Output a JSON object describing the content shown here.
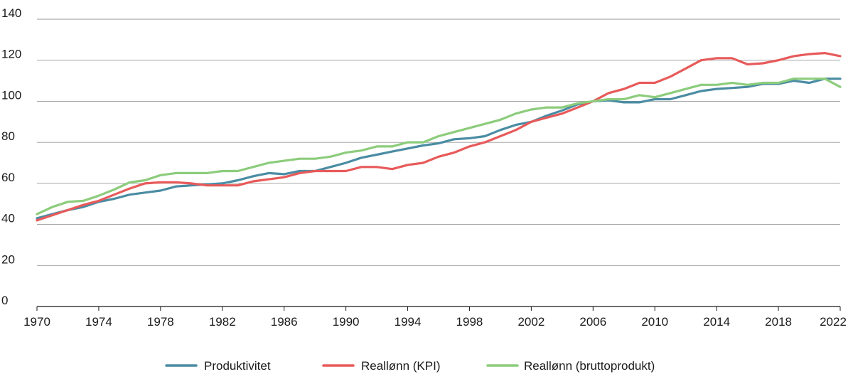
{
  "chart_data": {
    "type": "line",
    "title": "",
    "xlabel": "",
    "ylabel": "",
    "xlim": [
      1970,
      2022
    ],
    "ylim": [
      0,
      140
    ],
    "grid": true,
    "legend_position": "bottom",
    "x_ticks": [
      "1970",
      "1974",
      "1978",
      "1982",
      "1986",
      "1990",
      "1994",
      "1998",
      "2002",
      "2006",
      "2010",
      "2014",
      "2018",
      "2022"
    ],
    "y_ticks": [
      "0",
      "20",
      "40",
      "60",
      "80",
      "100",
      "120",
      "140"
    ],
    "x": [
      1970,
      1971,
      1972,
      1973,
      1974,
      1975,
      1976,
      1977,
      1978,
      1979,
      1980,
      1981,
      1982,
      1983,
      1984,
      1985,
      1986,
      1987,
      1988,
      1989,
      1990,
      1991,
      1992,
      1993,
      1994,
      1995,
      1996,
      1997,
      1998,
      1999,
      2000,
      2001,
      2002,
      2003,
      2004,
      2005,
      2006,
      2007,
      2008,
      2009,
      2010,
      2011,
      2012,
      2013,
      2014,
      2015,
      2016,
      2017,
      2018,
      2019,
      2020,
      2021,
      2022
    ],
    "series": [
      {
        "name": "Produktivitet",
        "color": "#4a8ca3",
        "values": [
          43,
          45,
          47,
          48.5,
          51,
          52.5,
          54.5,
          55.5,
          56.5,
          58.5,
          59,
          59.5,
          60,
          61.5,
          63.5,
          65,
          64.5,
          66,
          66,
          68,
          70,
          72.5,
          74,
          75.5,
          77,
          78.5,
          79.5,
          81.5,
          82,
          83,
          86,
          88.5,
          90,
          93,
          95.5,
          98.5,
          100,
          100.5,
          99.5,
          99.5,
          101,
          101,
          103,
          105,
          106,
          106.5,
          107,
          108.5,
          108.5,
          110,
          109,
          111,
          111
        ]
      },
      {
        "name": "Reallønn (KPI)",
        "color": "#e85a5a",
        "values": [
          42,
          44.5,
          47,
          49.5,
          51.5,
          54.5,
          57.5,
          60,
          60.5,
          60.5,
          60,
          59,
          59,
          59,
          61,
          62,
          63,
          65,
          66,
          66,
          66,
          68,
          68,
          67,
          69,
          70,
          73,
          75,
          78,
          80,
          83,
          86,
          90,
          92,
          94,
          97,
          100,
          104,
          106,
          109,
          109,
          112,
          116,
          120,
          121,
          121,
          118,
          118.5,
          120,
          122,
          123,
          123.5,
          122
        ]
      },
      {
        "name": "Reallønn (bruttoprodukt)",
        "color": "#8ccc7c",
        "values": [
          45,
          48.5,
          51,
          51.5,
          54,
          57,
          60.5,
          61.5,
          64,
          65,
          65,
          65,
          66,
          66,
          68,
          70,
          71,
          72,
          72,
          73,
          75,
          76,
          78,
          78,
          80,
          80,
          83,
          85,
          87,
          89,
          91,
          94,
          96,
          97,
          97,
          99,
          100,
          101,
          101,
          103,
          102,
          104,
          106,
          108,
          108,
          109,
          108,
          109,
          109,
          111,
          111,
          111,
          107
        ]
      }
    ]
  }
}
